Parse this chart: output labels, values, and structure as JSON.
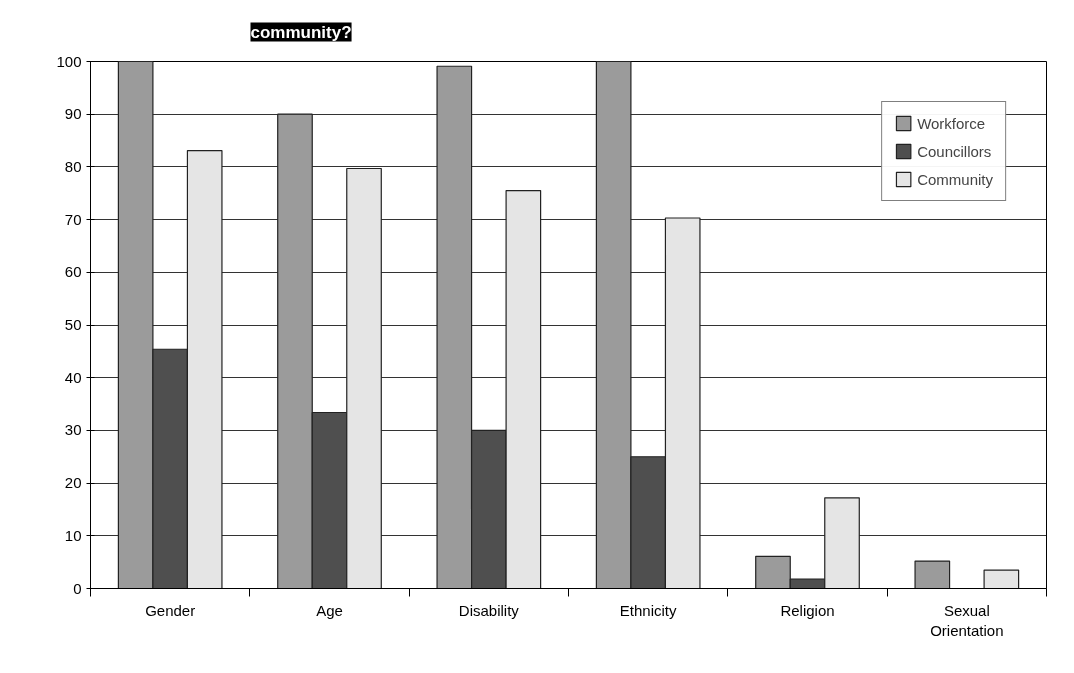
{
  "chart_data": {
    "type": "bar",
    "title": "community?",
    "categories": [
      "Gender",
      "Age",
      "Disability",
      "Ethnicity",
      "Religion",
      "Sexual Orientation"
    ],
    "series": [
      {
        "name": "Workforce",
        "color": "#9b9b9b",
        "values": [
          100,
          90,
          99.1,
          100,
          6.1,
          5.2
        ]
      },
      {
        "name": "Councillors",
        "color": "#4f4f4f",
        "values": [
          45.4,
          33.4,
          30,
          25,
          1.8,
          null
        ]
      },
      {
        "name": "Community",
        "color": "#e5e5e5",
        "values": [
          83.1,
          79.7,
          75.5,
          70.3,
          17.2,
          3.5
        ]
      }
    ],
    "ylim": [
      0,
      100
    ],
    "yticks": [
      0,
      10,
      20,
      30,
      40,
      50,
      60,
      70,
      80,
      90,
      100
    ],
    "grid": "y",
    "legend": "top right"
  }
}
